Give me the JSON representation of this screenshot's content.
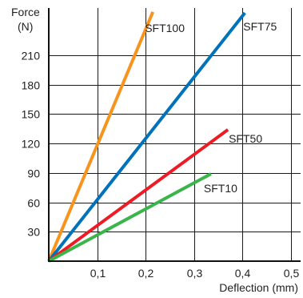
{
  "chart_data": {
    "type": "line",
    "title": "",
    "ylabel_line1": "Force",
    "ylabel_line2": "(N)",
    "xlabel": "Deflection (mm)",
    "x_ticks": [
      "0,1",
      "0,2",
      "0,3",
      "0,4",
      "0,5"
    ],
    "x_tick_values": [
      0.1,
      0.2,
      0.3,
      0.4,
      0.5
    ],
    "y_ticks": [
      "30",
      "60",
      "90",
      "120",
      "150",
      "180",
      "210"
    ],
    "y_tick_values": [
      30,
      60,
      90,
      120,
      150,
      180,
      210
    ],
    "xlim": [
      0,
      0.52
    ],
    "ylim": [
      0,
      258
    ],
    "grid": true,
    "series": [
      {
        "name": "SFT100",
        "color": "#f7941d",
        "x": [
          0,
          0.215
        ],
        "y": [
          0,
          254
        ]
      },
      {
        "name": "SFT75",
        "color": "#0072bc",
        "x": [
          0,
          0.405
        ],
        "y": [
          0,
          253
        ]
      },
      {
        "name": "SFT50",
        "color": "#ed1c24",
        "x": [
          0,
          0.37
        ],
        "y": [
          0,
          134
        ]
      },
      {
        "name": "SFT10",
        "color": "#39b54a",
        "x": [
          0,
          0.335
        ],
        "y": [
          0,
          89
        ]
      }
    ]
  }
}
